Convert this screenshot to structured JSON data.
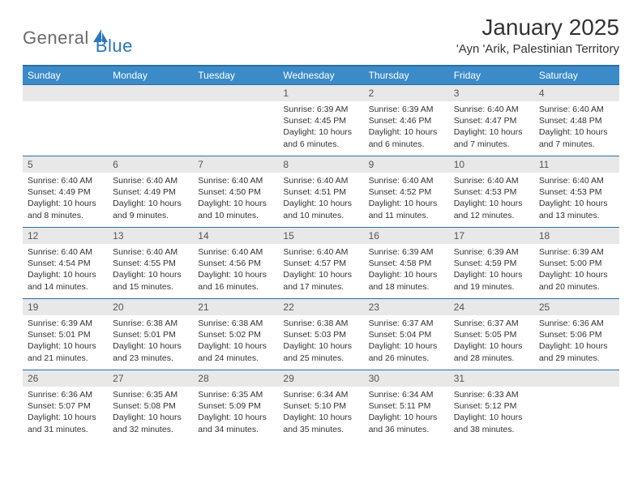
{
  "brand": {
    "part1": "General",
    "part2": "Blue"
  },
  "title": "January 2025",
  "location": "'Ayn 'Arik, Palestinian Territory",
  "colors": {
    "header_bg": "#3b8bc8",
    "header_border": "#2a6fa8",
    "daynum_bg": "#e8e8e8",
    "text": "#333333",
    "logo_gray": "#6b6b6b",
    "logo_blue": "#2a77bd"
  },
  "weekdays": [
    "Sunday",
    "Monday",
    "Tuesday",
    "Wednesday",
    "Thursday",
    "Friday",
    "Saturday"
  ],
  "layout": {
    "first_weekday_index": 3,
    "days_in_month": 31,
    "rows": 5,
    "cols": 7
  },
  "days": [
    {
      "n": 1,
      "sunrise": "6:39 AM",
      "sunset": "4:45 PM",
      "daylight": "10 hours and 6 minutes."
    },
    {
      "n": 2,
      "sunrise": "6:39 AM",
      "sunset": "4:46 PM",
      "daylight": "10 hours and 6 minutes."
    },
    {
      "n": 3,
      "sunrise": "6:40 AM",
      "sunset": "4:47 PM",
      "daylight": "10 hours and 7 minutes."
    },
    {
      "n": 4,
      "sunrise": "6:40 AM",
      "sunset": "4:48 PM",
      "daylight": "10 hours and 7 minutes."
    },
    {
      "n": 5,
      "sunrise": "6:40 AM",
      "sunset": "4:49 PM",
      "daylight": "10 hours and 8 minutes."
    },
    {
      "n": 6,
      "sunrise": "6:40 AM",
      "sunset": "4:49 PM",
      "daylight": "10 hours and 9 minutes."
    },
    {
      "n": 7,
      "sunrise": "6:40 AM",
      "sunset": "4:50 PM",
      "daylight": "10 hours and 10 minutes."
    },
    {
      "n": 8,
      "sunrise": "6:40 AM",
      "sunset": "4:51 PM",
      "daylight": "10 hours and 10 minutes."
    },
    {
      "n": 9,
      "sunrise": "6:40 AM",
      "sunset": "4:52 PM",
      "daylight": "10 hours and 11 minutes."
    },
    {
      "n": 10,
      "sunrise": "6:40 AM",
      "sunset": "4:53 PM",
      "daylight": "10 hours and 12 minutes."
    },
    {
      "n": 11,
      "sunrise": "6:40 AM",
      "sunset": "4:53 PM",
      "daylight": "10 hours and 13 minutes."
    },
    {
      "n": 12,
      "sunrise": "6:40 AM",
      "sunset": "4:54 PM",
      "daylight": "10 hours and 14 minutes."
    },
    {
      "n": 13,
      "sunrise": "6:40 AM",
      "sunset": "4:55 PM",
      "daylight": "10 hours and 15 minutes."
    },
    {
      "n": 14,
      "sunrise": "6:40 AM",
      "sunset": "4:56 PM",
      "daylight": "10 hours and 16 minutes."
    },
    {
      "n": 15,
      "sunrise": "6:40 AM",
      "sunset": "4:57 PM",
      "daylight": "10 hours and 17 minutes."
    },
    {
      "n": 16,
      "sunrise": "6:39 AM",
      "sunset": "4:58 PM",
      "daylight": "10 hours and 18 minutes."
    },
    {
      "n": 17,
      "sunrise": "6:39 AM",
      "sunset": "4:59 PM",
      "daylight": "10 hours and 19 minutes."
    },
    {
      "n": 18,
      "sunrise": "6:39 AM",
      "sunset": "5:00 PM",
      "daylight": "10 hours and 20 minutes."
    },
    {
      "n": 19,
      "sunrise": "6:39 AM",
      "sunset": "5:01 PM",
      "daylight": "10 hours and 21 minutes."
    },
    {
      "n": 20,
      "sunrise": "6:38 AM",
      "sunset": "5:01 PM",
      "daylight": "10 hours and 23 minutes."
    },
    {
      "n": 21,
      "sunrise": "6:38 AM",
      "sunset": "5:02 PM",
      "daylight": "10 hours and 24 minutes."
    },
    {
      "n": 22,
      "sunrise": "6:38 AM",
      "sunset": "5:03 PM",
      "daylight": "10 hours and 25 minutes."
    },
    {
      "n": 23,
      "sunrise": "6:37 AM",
      "sunset": "5:04 PM",
      "daylight": "10 hours and 26 minutes."
    },
    {
      "n": 24,
      "sunrise": "6:37 AM",
      "sunset": "5:05 PM",
      "daylight": "10 hours and 28 minutes."
    },
    {
      "n": 25,
      "sunrise": "6:36 AM",
      "sunset": "5:06 PM",
      "daylight": "10 hours and 29 minutes."
    },
    {
      "n": 26,
      "sunrise": "6:36 AM",
      "sunset": "5:07 PM",
      "daylight": "10 hours and 31 minutes."
    },
    {
      "n": 27,
      "sunrise": "6:35 AM",
      "sunset": "5:08 PM",
      "daylight": "10 hours and 32 minutes."
    },
    {
      "n": 28,
      "sunrise": "6:35 AM",
      "sunset": "5:09 PM",
      "daylight": "10 hours and 34 minutes."
    },
    {
      "n": 29,
      "sunrise": "6:34 AM",
      "sunset": "5:10 PM",
      "daylight": "10 hours and 35 minutes."
    },
    {
      "n": 30,
      "sunrise": "6:34 AM",
      "sunset": "5:11 PM",
      "daylight": "10 hours and 36 minutes."
    },
    {
      "n": 31,
      "sunrise": "6:33 AM",
      "sunset": "5:12 PM",
      "daylight": "10 hours and 38 minutes."
    }
  ],
  "labels": {
    "sunrise": "Sunrise:",
    "sunset": "Sunset:",
    "daylight": "Daylight:"
  }
}
